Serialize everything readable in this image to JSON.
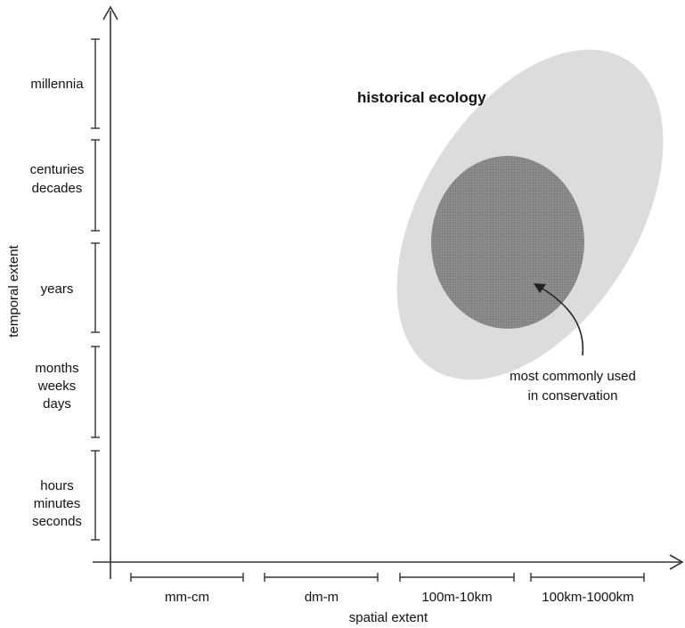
{
  "axes": {
    "y_label": "temporal extent",
    "x_label": "spatial extent"
  },
  "temporal_scales": [
    [
      "millennia"
    ],
    [
      "centuries",
      "decades"
    ],
    [
      "years"
    ],
    [
      "months",
      "weeks",
      "days"
    ],
    [
      "hours",
      "minutes",
      "seconds"
    ]
  ],
  "spatial_scales": [
    "mm-cm",
    "dm-m",
    "100m-10km",
    "100km-1000km"
  ],
  "regions": {
    "outer_label": "historical ecology",
    "inner_label_lines": [
      "most commonly used",
      "in conservation"
    ]
  },
  "colors": {
    "outer_fill": "#dcdcdc",
    "inner_fill": "#8f8f8f",
    "line": "#333333"
  }
}
